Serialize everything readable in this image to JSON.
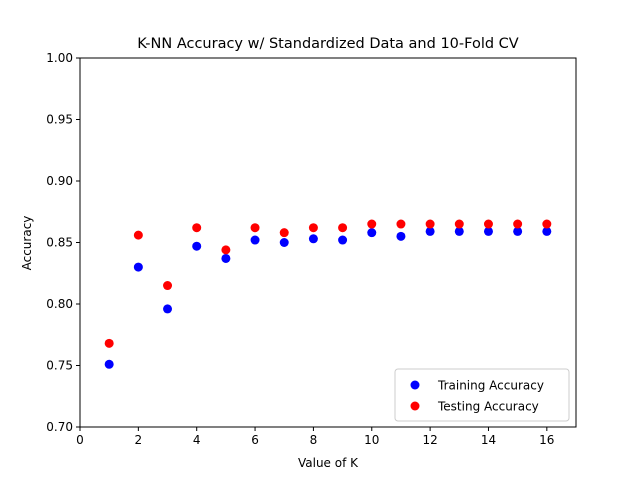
{
  "chart_data": {
    "type": "scatter",
    "title": "K-NN Accuracy w/ Standardized Data and 10-Fold CV",
    "xlabel": "Value of K",
    "ylabel": "Accuracy",
    "xlim": [
      0,
      17
    ],
    "ylim": [
      0.7,
      1.0
    ],
    "xticks": [
      0,
      2,
      4,
      6,
      8,
      10,
      12,
      14,
      16
    ],
    "xtick_labels": [
      "0",
      "2",
      "4",
      "6",
      "8",
      "10",
      "12",
      "14",
      "16"
    ],
    "yticks": [
      0.7,
      0.75,
      0.8,
      0.85,
      0.9,
      0.95,
      1.0
    ],
    "ytick_labels": [
      "0.70",
      "0.75",
      "0.80",
      "0.85",
      "0.90",
      "0.95",
      "1.00"
    ],
    "grid": false,
    "legend_position": "bottom-right",
    "x": [
      1,
      2,
      3,
      4,
      5,
      6,
      7,
      8,
      9,
      10,
      11,
      12,
      13,
      14,
      15,
      16
    ],
    "series": [
      {
        "name": "Training Accuracy",
        "color": "#0000ff",
        "values": [
          0.751,
          0.83,
          0.796,
          0.847,
          0.837,
          0.852,
          0.85,
          0.853,
          0.852,
          0.858,
          0.855,
          0.859,
          0.859,
          0.859,
          0.859,
          0.859
        ]
      },
      {
        "name": "Testing Accuracy",
        "color": "#ff0000",
        "values": [
          0.768,
          0.856,
          0.815,
          0.862,
          0.844,
          0.862,
          0.858,
          0.862,
          0.862,
          0.865,
          0.865,
          0.865,
          0.865,
          0.865,
          0.865,
          0.865
        ]
      }
    ]
  }
}
